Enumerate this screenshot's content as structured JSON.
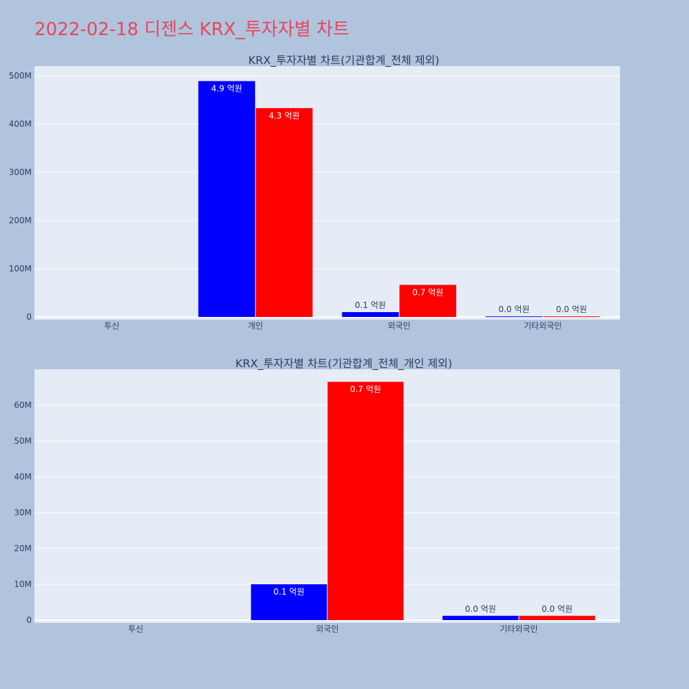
{
  "page": {
    "title": "2022-02-18 디젠스 KRX_투자자별 차트"
  },
  "colors": {
    "background": "#b0c4de",
    "plot_bg": "#e5ecf6",
    "title": "#e8465a",
    "series_a": "#0000ff",
    "series_b": "#ff0000"
  },
  "chart_data": [
    {
      "type": "bar",
      "title": "KRX_투자자별 차트(기관합계_전체 제외)",
      "categories": [
        "투신",
        "개인",
        "외국인",
        "기타외국인"
      ],
      "ylim": [
        0,
        520000000
      ],
      "yticks": [
        0,
        100000000,
        200000000,
        300000000,
        400000000,
        500000000
      ],
      "ytick_labels": [
        "0",
        "100M",
        "200M",
        "300M",
        "400M",
        "500M"
      ],
      "grid": true,
      "series": [
        {
          "color": "#0000ff",
          "values": [
            0,
            489000000,
            10000000,
            1200000
          ],
          "labels": [
            "",
            "4.9 억원",
            "0.1 억원",
            "0.0 억원"
          ]
        },
        {
          "color": "#ff0000",
          "values": [
            0,
            433000000,
            66500000,
            1200000
          ],
          "labels": [
            "",
            "4.3 억원",
            "0.7 억원",
            "0.0 억원"
          ]
        }
      ]
    },
    {
      "type": "bar",
      "title": "KRX_투자자별 차트(기관합계_전체_개인 제외)",
      "categories": [
        "투신",
        "외국인",
        "기타외국인"
      ],
      "ylim": [
        0,
        70000000
      ],
      "yticks": [
        0,
        10000000,
        20000000,
        30000000,
        40000000,
        50000000,
        60000000
      ],
      "ytick_labels": [
        "0",
        "10M",
        "20M",
        "30M",
        "40M",
        "50M",
        "60M"
      ],
      "grid": true,
      "series": [
        {
          "color": "#0000ff",
          "values": [
            0,
            10000000,
            1200000
          ],
          "labels": [
            "",
            "0.1 억원",
            "0.0 억원"
          ]
        },
        {
          "color": "#ff0000",
          "values": [
            0,
            66500000,
            1200000
          ],
          "labels": [
            "",
            "0.7 억원",
            "0.0 억원"
          ]
        }
      ]
    }
  ]
}
